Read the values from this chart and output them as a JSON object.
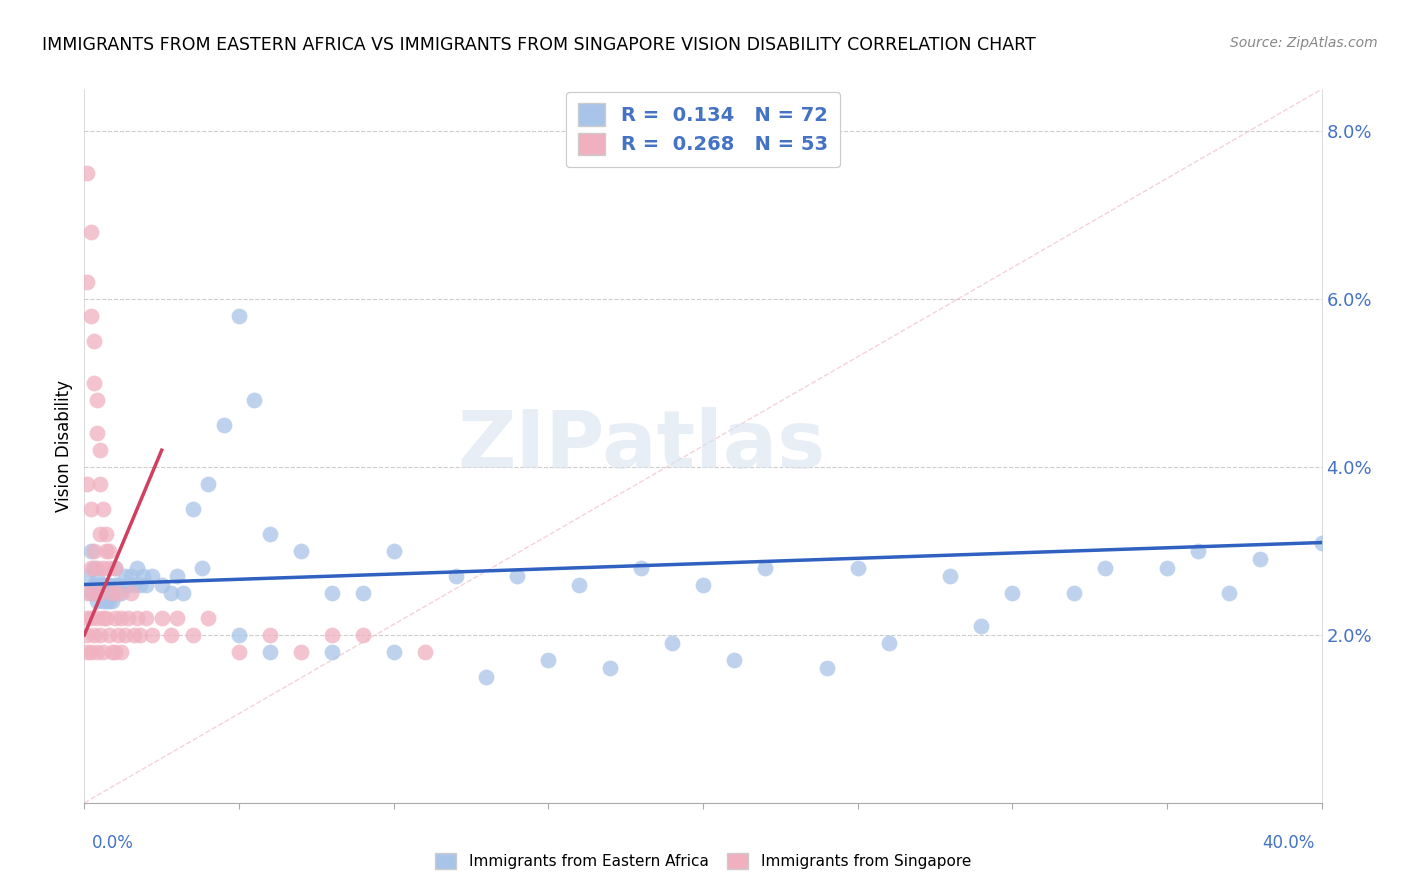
{
  "title": "IMMIGRANTS FROM EASTERN AFRICA VS IMMIGRANTS FROM SINGAPORE VISION DISABILITY CORRELATION CHART",
  "source": "Source: ZipAtlas.com",
  "ylabel": "Vision Disability",
  "yticks": [
    0.0,
    0.02,
    0.04,
    0.06,
    0.08
  ],
  "ytick_labels": [
    "",
    "2.0%",
    "4.0%",
    "6.0%",
    "8.0%"
  ],
  "xlim": [
    0.0,
    0.4
  ],
  "ylim": [
    0.0,
    0.085
  ],
  "blue_color": "#a8c4e8",
  "pink_color": "#f0b0c0",
  "blue_line_color": "#3060c0",
  "pink_line_color": "#d04060",
  "diag_color": "#f0c0c8",
  "R_blue": 0.134,
  "N_blue": 72,
  "R_pink": 0.268,
  "N_pink": 53,
  "legend_label_blue": "Immigrants from Eastern Africa",
  "legend_label_pink": "Immigrants from Singapore",
  "watermark": "ZIPatlas",
  "blue_x": [
    0.001,
    0.002,
    0.002,
    0.003,
    0.003,
    0.004,
    0.004,
    0.005,
    0.005,
    0.006,
    0.006,
    0.007,
    0.007,
    0.008,
    0.008,
    0.009,
    0.01,
    0.01,
    0.011,
    0.012,
    0.013,
    0.014,
    0.015,
    0.016,
    0.017,
    0.018,
    0.019,
    0.02,
    0.022,
    0.025,
    0.028,
    0.03,
    0.032,
    0.035,
    0.038,
    0.04,
    0.045,
    0.05,
    0.055,
    0.06,
    0.07,
    0.08,
    0.09,
    0.1,
    0.12,
    0.14,
    0.16,
    0.18,
    0.2,
    0.22,
    0.25,
    0.28,
    0.3,
    0.32,
    0.35,
    0.36,
    0.38,
    0.4,
    0.33,
    0.37,
    0.05,
    0.06,
    0.08,
    0.1,
    0.13,
    0.15,
    0.17,
    0.19,
    0.21,
    0.24,
    0.26,
    0.29
  ],
  "blue_y": [
    0.027,
    0.025,
    0.03,
    0.026,
    0.028,
    0.024,
    0.027,
    0.025,
    0.026,
    0.024,
    0.026,
    0.024,
    0.026,
    0.024,
    0.026,
    0.024,
    0.026,
    0.028,
    0.026,
    0.025,
    0.027,
    0.026,
    0.027,
    0.026,
    0.028,
    0.026,
    0.027,
    0.026,
    0.027,
    0.026,
    0.025,
    0.027,
    0.025,
    0.035,
    0.028,
    0.038,
    0.045,
    0.058,
    0.048,
    0.032,
    0.03,
    0.025,
    0.025,
    0.03,
    0.027,
    0.027,
    0.026,
    0.028,
    0.026,
    0.028,
    0.028,
    0.027,
    0.025,
    0.025,
    0.028,
    0.03,
    0.029,
    0.031,
    0.028,
    0.025,
    0.02,
    0.018,
    0.018,
    0.018,
    0.015,
    0.017,
    0.016,
    0.019,
    0.017,
    0.016,
    0.019,
    0.021
  ],
  "pink_x": [
    0.001,
    0.001,
    0.001,
    0.001,
    0.001,
    0.002,
    0.002,
    0.002,
    0.002,
    0.003,
    0.003,
    0.003,
    0.004,
    0.004,
    0.004,
    0.005,
    0.005,
    0.005,
    0.006,
    0.006,
    0.006,
    0.007,
    0.007,
    0.008,
    0.008,
    0.009,
    0.009,
    0.01,
    0.01,
    0.01,
    0.011,
    0.011,
    0.012,
    0.012,
    0.013,
    0.014,
    0.015,
    0.016,
    0.017,
    0.018,
    0.02,
    0.022,
    0.025,
    0.028,
    0.03,
    0.035,
    0.04,
    0.05,
    0.06,
    0.07,
    0.08,
    0.09,
    0.11
  ],
  "pink_y": [
    0.038,
    0.025,
    0.022,
    0.02,
    0.018,
    0.035,
    0.028,
    0.022,
    0.018,
    0.03,
    0.025,
    0.02,
    0.028,
    0.022,
    0.018,
    0.032,
    0.025,
    0.02,
    0.028,
    0.022,
    0.018,
    0.03,
    0.022,
    0.028,
    0.02,
    0.025,
    0.018,
    0.028,
    0.022,
    0.018,
    0.025,
    0.02,
    0.022,
    0.018,
    0.02,
    0.022,
    0.025,
    0.02,
    0.022,
    0.02,
    0.022,
    0.02,
    0.022,
    0.02,
    0.022,
    0.02,
    0.022,
    0.018,
    0.02,
    0.018,
    0.02,
    0.02,
    0.018
  ],
  "pink_high_x": [
    0.001,
    0.002,
    0.003,
    0.004,
    0.005,
    0.001,
    0.002,
    0.003,
    0.004,
    0.005,
    0.006,
    0.007,
    0.008
  ],
  "pink_high_y": [
    0.075,
    0.068,
    0.055,
    0.048,
    0.042,
    0.062,
    0.058,
    0.05,
    0.044,
    0.038,
    0.035,
    0.032,
    0.03
  ]
}
